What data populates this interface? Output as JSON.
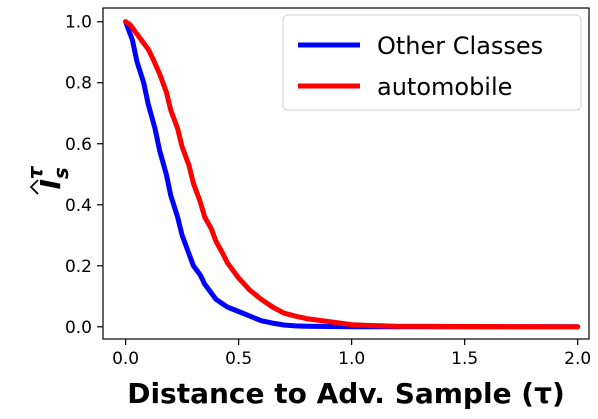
{
  "chart_data": {
    "type": "line",
    "title": "",
    "xlabel": "Distance to Adv. Sample (τ)",
    "ylabel_main": "I",
    "ylabel_sub": "s",
    "ylabel_sup": "τ",
    "xlim": [
      -0.1,
      2.05
    ],
    "ylim": [
      -0.04,
      1.045
    ],
    "xticks": [
      0.0,
      0.5,
      1.0,
      1.5,
      2.0
    ],
    "xtick_labels": [
      "0.0",
      "0.5",
      "1.0",
      "1.5",
      "2.0"
    ],
    "yticks": [
      0.0,
      0.2,
      0.4,
      0.6,
      0.8,
      1.0
    ],
    "ytick_labels": [
      "0.0",
      "0.2",
      "0.4",
      "0.6",
      "0.8",
      "1.0"
    ],
    "grid": false,
    "legend_position": "top-right",
    "series": [
      {
        "name": "Other Classes",
        "color": "#0000ff",
        "x": [
          0.0,
          0.03,
          0.05,
          0.08,
          0.1,
          0.13,
          0.15,
          0.18,
          0.2,
          0.23,
          0.25,
          0.28,
          0.3,
          0.33,
          0.35,
          0.38,
          0.4,
          0.43,
          0.45,
          0.5,
          0.55,
          0.6,
          0.65,
          0.7,
          0.75,
          0.8,
          0.9,
          1.0,
          1.2,
          1.5,
          2.0
        ],
        "y": [
          1.0,
          0.94,
          0.87,
          0.8,
          0.73,
          0.65,
          0.58,
          0.5,
          0.43,
          0.36,
          0.3,
          0.24,
          0.2,
          0.17,
          0.14,
          0.11,
          0.09,
          0.075,
          0.065,
          0.05,
          0.035,
          0.02,
          0.012,
          0.006,
          0.003,
          0.002,
          0.001,
          0.0,
          0.0,
          0.0,
          0.0
        ]
      },
      {
        "name": "automobile",
        "color": "#ff0000",
        "x": [
          0.0,
          0.02,
          0.05,
          0.08,
          0.1,
          0.12,
          0.15,
          0.18,
          0.2,
          0.23,
          0.25,
          0.28,
          0.3,
          0.33,
          0.35,
          0.38,
          0.4,
          0.43,
          0.45,
          0.5,
          0.55,
          0.6,
          0.65,
          0.7,
          0.75,
          0.8,
          0.85,
          0.9,
          0.95,
          1.0,
          1.1,
          1.2,
          1.5,
          2.0
        ],
        "y": [
          1.0,
          0.99,
          0.96,
          0.93,
          0.91,
          0.88,
          0.83,
          0.77,
          0.71,
          0.65,
          0.59,
          0.53,
          0.47,
          0.41,
          0.36,
          0.32,
          0.28,
          0.24,
          0.21,
          0.16,
          0.12,
          0.09,
          0.065,
          0.045,
          0.035,
          0.027,
          0.022,
          0.017,
          0.012,
          0.007,
          0.004,
          0.002,
          0.001,
          0.0
        ]
      }
    ]
  }
}
